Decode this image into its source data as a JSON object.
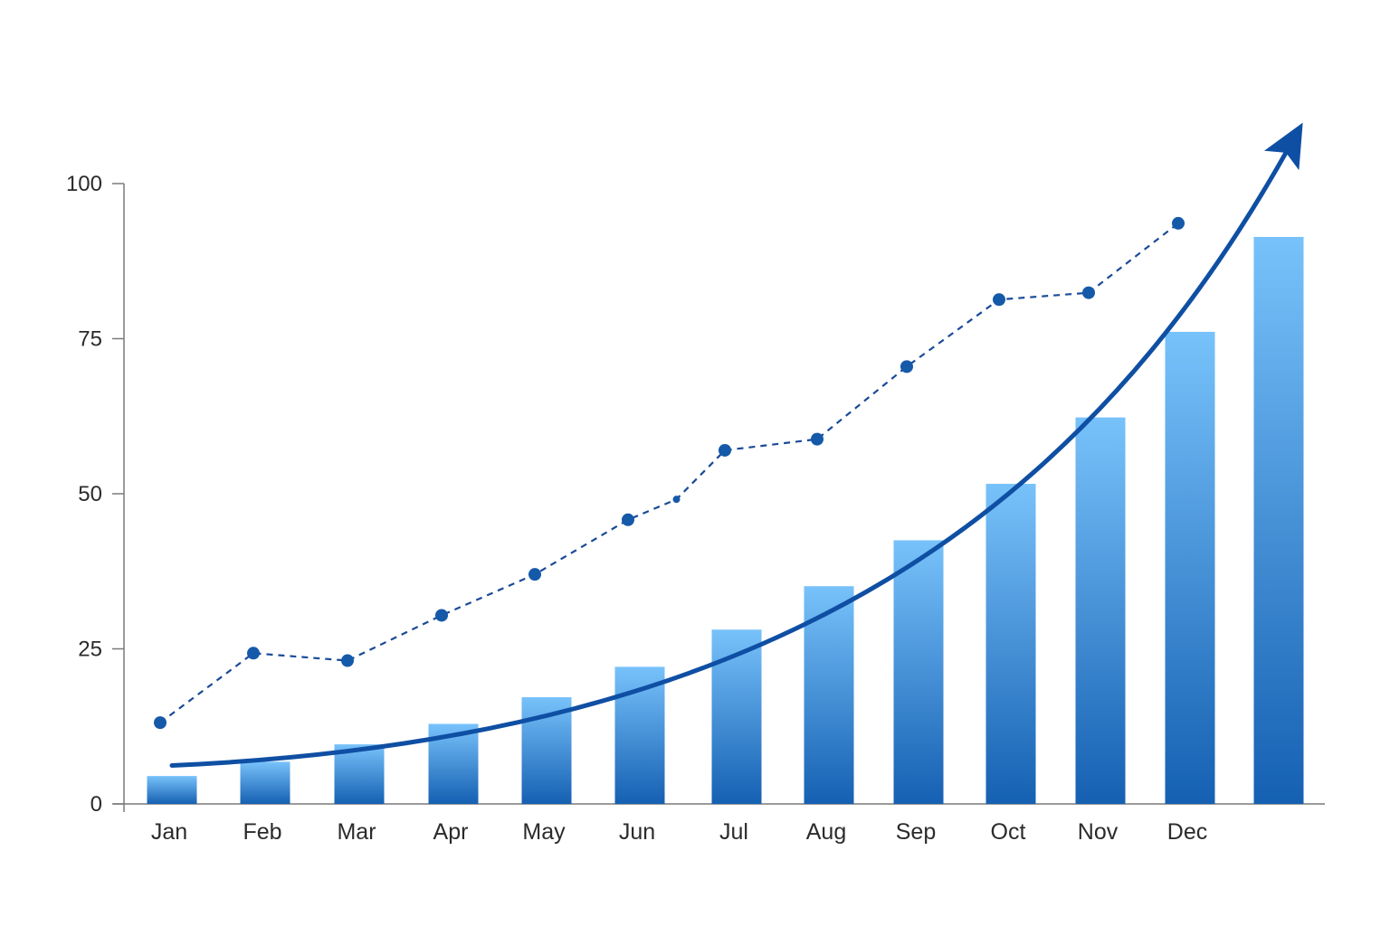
{
  "chart_data": {
    "type": "bar",
    "categories": [
      "Jan",
      "Feb",
      "Mar",
      "Apr",
      "May",
      "Jun",
      "Jul",
      "Aug",
      "Sep",
      "Oct",
      "Nov",
      "Dec",
      ""
    ],
    "series": [
      {
        "kind": "bar",
        "values": [
          4.5,
          6.8,
          9.6,
          12.9,
          17.2,
          22.1,
          28.1,
          35.1,
          42.5,
          51.6,
          62.3,
          76.1,
          91.4
        ]
      },
      {
        "kind": "line",
        "style": "dashed-with-markers",
        "points": [
          {
            "x": "Jan",
            "y": 13.1
          },
          {
            "x": "Feb",
            "y": 24.3
          },
          {
            "x": "Mar",
            "y": 23.1
          },
          {
            "x": "Apr",
            "y": 30.4
          },
          {
            "x": "May",
            "y": 37.0
          },
          {
            "x": "Jun",
            "y": 45.8
          },
          {
            "x": "Jun-Jul",
            "y": 49.1
          },
          {
            "x": "Jul",
            "y": 57.0
          },
          {
            "x": "Aug",
            "y": 58.8
          },
          {
            "x": "Sep",
            "y": 70.5
          },
          {
            "x": "Oct",
            "y": 81.3
          },
          {
            "x": "Nov",
            "y": 82.4
          },
          {
            "x": "Dec",
            "y": 93.6
          }
        ]
      },
      {
        "kind": "trend-arrow",
        "style": "solid-curve-with-arrowhead",
        "start": {
          "x": "Jan",
          "y": 6.2
        },
        "end": {
          "x": "beyond last bar",
          "y": 106
        }
      }
    ],
    "y_ticks": [
      0,
      25,
      50,
      75,
      100
    ],
    "ylim": [
      0,
      100
    ],
    "title": "",
    "xlabel": "",
    "ylabel": "",
    "grid": false,
    "legend": "none"
  },
  "colors": {
    "bar_top": "#78c2fb",
    "bar_bottom": "#1560b2",
    "line": "#1a4a98",
    "marker": "#1559a9",
    "arrow": "#0f4fa3",
    "axis": "#7a7a7a",
    "text": "#2b2b2b",
    "background": "#ffffff"
  }
}
